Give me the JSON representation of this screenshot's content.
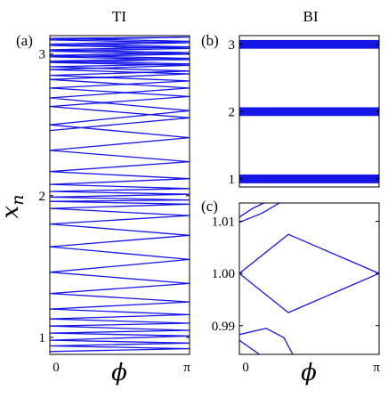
{
  "chart_data": [
    {
      "id": "a",
      "type": "line",
      "panel_label": "(a)",
      "title": "TI",
      "xlabel": "ϕ",
      "ylabel": "x",
      "ylabel_sub": "n",
      "xlim": [
        0,
        3.14159
      ],
      "ylim": [
        0.88,
        3.13
      ],
      "xticks": [
        {
          "v": 0,
          "label": "0"
        },
        {
          "v": 3.14159,
          "label": "π"
        }
      ],
      "yticks": [
        {
          "v": 1,
          "label": "1"
        },
        {
          "v": 2,
          "label": "2"
        },
        {
          "v": 3,
          "label": "3"
        }
      ],
      "color": "#1515e6",
      "series": [
        {
          "x": [
            0,
            3.14159,
            0,
            3.14159,
            0,
            3.14159,
            0,
            3.14159,
            0,
            3.14159,
            0,
            3.14159,
            0,
            3.14159,
            0,
            3.14159,
            0,
            3.14159,
            0,
            3.14159,
            0,
            3.14159,
            0,
            3.14159,
            0,
            3.14159,
            0,
            3.14159,
            0,
            3.14159,
            0,
            3.14159,
            0,
            3.14159,
            0,
            3.14159,
            0,
            3.14159,
            0,
            3.14159,
            0,
            3.14159,
            0,
            3.14159,
            0,
            3.14159,
            0,
            3.14159,
            0,
            3.14159,
            0,
            3.14159,
            0,
            3.14159,
            0,
            3.14159,
            0,
            3.14159,
            0,
            3.14159,
            0,
            3.14159,
            0,
            3.14159,
            0,
            3.14159,
            0,
            3.14159,
            0,
            3.14159,
            0,
            3.14159,
            0
          ],
          "y": [
            0.9,
            0.92,
            0.94,
            0.96,
            0.98,
            1.01,
            1.03,
            1.05,
            1.08,
            1.1,
            1.13,
            1.16,
            1.2,
            1.25,
            1.31,
            1.38,
            1.46,
            1.55,
            1.64,
            1.72,
            1.8,
            1.86,
            1.91,
            1.94,
            1.96,
            1.97,
            1.99,
            2.01,
            2.03,
            2.05,
            2.08,
            2.12,
            2.17,
            2.24,
            2.32,
            2.41,
            2.5,
            2.6,
            2.69,
            2.76,
            2.82,
            2.86,
            2.89,
            2.92,
            2.94,
            2.96,
            2.98,
            3.0,
            3.02,
            3.04,
            3.06,
            3.08,
            3.1,
            3.12,
            3.11,
            3.09,
            3.07,
            3.05,
            3.03,
            3.01,
            2.99,
            2.97,
            2.95,
            2.93,
            2.91,
            2.88,
            2.85,
            2.81,
            2.76,
            2.7,
            2.63,
            2.55,
            2.46
          ]
        }
      ]
    },
    {
      "id": "b",
      "type": "line",
      "panel_label": "(b)",
      "title": "BI",
      "xlim": [
        0,
        3.14159
      ],
      "ylim": [
        0.88,
        3.13
      ],
      "yticks": [
        {
          "v": 1,
          "label": "1"
        },
        {
          "v": 2,
          "label": "2"
        },
        {
          "v": 3,
          "label": "3"
        }
      ],
      "color": "#1515e6",
      "bands": [
        {
          "center": 1.0,
          "half_width": 0.065
        },
        {
          "center": 2.0,
          "half_width": 0.065
        },
        {
          "center": 3.0,
          "half_width": 0.065
        }
      ]
    },
    {
      "id": "c",
      "type": "line",
      "panel_label": "(c)",
      "xlabel": "ϕ",
      "xlim": [
        0,
        3.14159
      ],
      "ylim": [
        0.9845,
        1.0135
      ],
      "xticks": [
        {
          "v": 0,
          "label": "0"
        },
        {
          "v": 3.14159,
          "label": "π"
        }
      ],
      "yticks": [
        {
          "v": 0.99,
          "label": "0.99"
        },
        {
          "v": 1.0,
          "label": "1.00"
        },
        {
          "v": 1.01,
          "label": "1.01"
        }
      ],
      "color": "#1515e6",
      "series": [
        {
          "x": [
            0,
            1.1,
            3.14159,
            1.1,
            0
          ],
          "y": [
            1.0,
            1.0075,
            1.0,
            0.9925,
            1.0
          ]
        },
        {
          "x": [
            0,
            0.5,
            0.9
          ],
          "y": [
            1.0098,
            1.0115,
            1.0135
          ]
        },
        {
          "x": [
            0,
            0.3,
            0.55
          ],
          "y": [
            1.0108,
            1.0125,
            1.0135
          ]
        },
        {
          "x": [
            0,
            0.6,
            1.0,
            1.2
          ],
          "y": [
            0.9883,
            0.9895,
            0.9877,
            0.9845
          ]
        },
        {
          "x": [
            0,
            0.25,
            0.45
          ],
          "y": [
            0.9872,
            0.9857,
            0.9845
          ]
        }
      ]
    }
  ]
}
